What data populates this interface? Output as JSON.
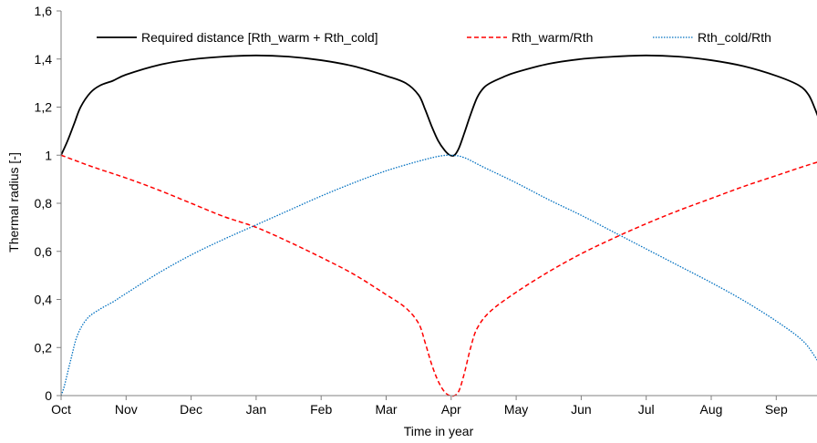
{
  "chart_data": {
    "type": "line",
    "title": "",
    "xlabel": "Time in year",
    "ylabel": "Thermal radius [-]",
    "ylim": [
      0,
      1.6
    ],
    "y_ticks": [
      "0",
      "0,2",
      "0,4",
      "0,6",
      "0,8",
      "1",
      "1,2",
      "1,4",
      "1,6"
    ],
    "x_categories": [
      "Oct",
      "Nov",
      "Dec",
      "Jan",
      "Feb",
      "Mar",
      "Apr",
      "May",
      "Jun",
      "Jul",
      "Aug",
      "Sep"
    ],
    "x_unit": "months since Oct 1",
    "xlim": [
      0,
      12
    ],
    "grid": false,
    "legend_position": "top",
    "series": [
      {
        "name": "Required distance [Rth_warm + Rth_cold]",
        "color": "#000000",
        "dash": "solid",
        "x": [
          0,
          0.1,
          0.2,
          0.3,
          0.45,
          0.6,
          0.8,
          1.0,
          1.5,
          2.0,
          2.5,
          3.0,
          3.5,
          4.0,
          4.5,
          5.0,
          5.3,
          5.5,
          5.6,
          5.7,
          5.8,
          5.9,
          5.98,
          6.05,
          6.12,
          6.2,
          6.3,
          6.4,
          6.5,
          6.6,
          6.8,
          7.0,
          7.5,
          8.0,
          8.5,
          9.0,
          9.5,
          10.0,
          10.5,
          11.0,
          11.35,
          11.5,
          11.6,
          11.7,
          11.8,
          11.9,
          12.0
        ],
        "y": [
          1.0,
          1.06,
          1.13,
          1.2,
          1.26,
          1.29,
          1.31,
          1.335,
          1.375,
          1.398,
          1.41,
          1.415,
          1.41,
          1.395,
          1.37,
          1.33,
          1.3,
          1.25,
          1.19,
          1.12,
          1.06,
          1.02,
          1.0,
          1.0,
          1.03,
          1.09,
          1.17,
          1.24,
          1.28,
          1.3,
          1.325,
          1.345,
          1.38,
          1.4,
          1.41,
          1.415,
          1.41,
          1.395,
          1.37,
          1.33,
          1.29,
          1.25,
          1.19,
          1.12,
          1.07,
          1.03,
          1.02
        ]
      },
      {
        "name": "Rth_warm/Rth",
        "color": "#ff0000",
        "dash": "dashed",
        "x": [
          0,
          0.5,
          1.0,
          1.5,
          2.0,
          2.5,
          3.0,
          3.5,
          4.0,
          4.5,
          5.0,
          5.3,
          5.5,
          5.6,
          5.7,
          5.8,
          5.9,
          5.98,
          6.05,
          6.12,
          6.2,
          6.3,
          6.4,
          6.6,
          7.0,
          7.5,
          8.0,
          8.5,
          9.0,
          9.5,
          10.0,
          10.5,
          11.0,
          11.5,
          12.0
        ],
        "y": [
          1.0,
          0.95,
          0.905,
          0.855,
          0.8,
          0.745,
          0.7,
          0.64,
          0.575,
          0.505,
          0.42,
          0.365,
          0.3,
          0.22,
          0.13,
          0.06,
          0.015,
          0.0,
          0.0,
          0.02,
          0.09,
          0.2,
          0.28,
          0.35,
          0.43,
          0.515,
          0.59,
          0.655,
          0.715,
          0.77,
          0.82,
          0.87,
          0.915,
          0.96,
          1.0
        ]
      },
      {
        "name": "Rth_cold/Rth",
        "color": "#0070c0",
        "dash": "dotted",
        "x": [
          0,
          0.05,
          0.15,
          0.25,
          0.4,
          0.6,
          0.8,
          1.0,
          1.5,
          2.0,
          2.5,
          3.0,
          3.5,
          4.0,
          4.5,
          5.0,
          5.5,
          5.8,
          6.0,
          6.2,
          6.5,
          7.0,
          7.5,
          8.0,
          8.5,
          9.0,
          9.5,
          10.0,
          10.5,
          11.0,
          11.4,
          11.6,
          11.7,
          11.8,
          11.9,
          12.0
        ],
        "y": [
          0.0,
          0.04,
          0.15,
          0.25,
          0.32,
          0.36,
          0.39,
          0.425,
          0.51,
          0.585,
          0.65,
          0.71,
          0.77,
          0.83,
          0.885,
          0.935,
          0.975,
          0.995,
          1.0,
          0.99,
          0.95,
          0.885,
          0.815,
          0.75,
          0.68,
          0.61,
          0.54,
          0.47,
          0.395,
          0.31,
          0.23,
          0.16,
          0.11,
          0.06,
          0.03,
          0.0
        ]
      }
    ]
  }
}
